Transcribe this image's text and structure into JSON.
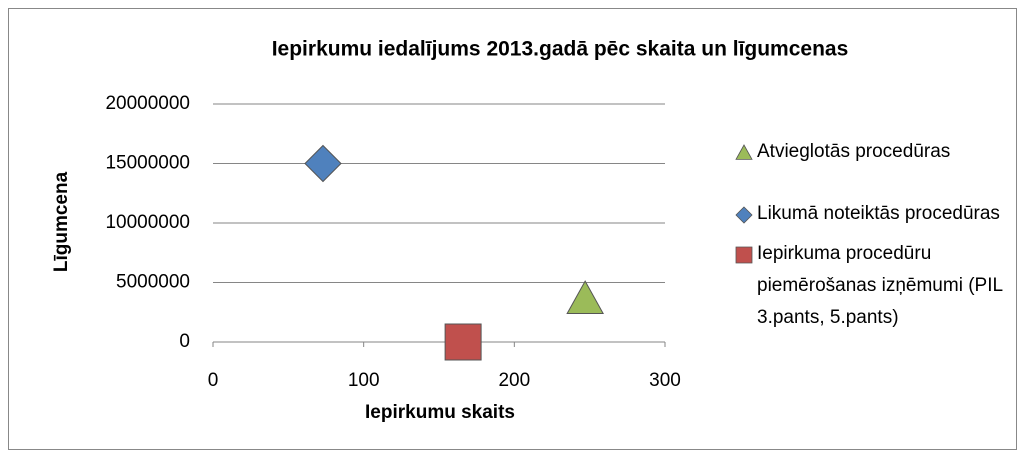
{
  "chart_data": {
    "type": "scatter",
    "title": "Iepirkumu iedalījums 2013.gadā pēc skaita un līgumcenas",
    "xlabel": "Iepirkumu skaits",
    "ylabel": "Līgumcena",
    "series": [
      {
        "name": "Atvieglotās procedūras",
        "color": "#9bbb59",
        "marker": "triangle",
        "x": [
          247
        ],
        "values": [
          3600000
        ]
      },
      {
        "name": "Likumā noteiktās procedūras",
        "color": "#4f81bd",
        "marker": "diamond",
        "x": [
          73
        ],
        "values": [
          15000000
        ]
      },
      {
        "name": "Iepirkuma procedūru piemērošanas izņēmumi (PIL 3.pants, 5.pants)",
        "color": "#c0504d",
        "marker": "square",
        "x": [
          166
        ],
        "values": [
          0
        ]
      }
    ],
    "xlim": [
      0,
      300
    ],
    "xticks": [
      0,
      100,
      200,
      300
    ],
    "ylim": [
      0,
      20000000
    ],
    "yticks": [
      0,
      5000000,
      10000000,
      15000000,
      20000000
    ],
    "grid": true,
    "legend": "right"
  }
}
